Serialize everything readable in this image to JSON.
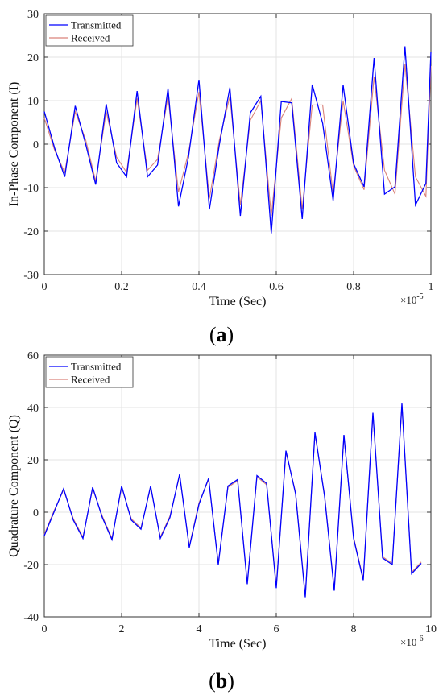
{
  "chart_data": [
    {
      "type": "line",
      "panel_label": "a",
      "xlabel": "Time (Sec)",
      "ylabel": "In-Phase Component (I)",
      "x_exponent_base": "×10",
      "x_exponent_power": "-5",
      "xlim": [
        0,
        1
      ],
      "ylim": [
        -30,
        30
      ],
      "xticks": [
        "0",
        "0.2",
        "0.4",
        "0.6",
        "0.8",
        "1"
      ],
      "yticks": [
        "-30",
        "-20",
        "-10",
        "0",
        "10",
        "20",
        "30"
      ],
      "xtick_values": [
        0,
        0.2,
        0.4,
        0.6,
        0.8,
        1
      ],
      "ytick_values": [
        -30,
        -20,
        -10,
        0,
        10,
        20,
        30
      ],
      "grid": true,
      "legend_position": "top-left",
      "series": [
        {
          "name": "Transmitted",
          "color": "#0000ff",
          "x": [
            0,
            0.027,
            0.053,
            0.08,
            0.107,
            0.133,
            0.16,
            0.187,
            0.213,
            0.24,
            0.267,
            0.293,
            0.32,
            0.347,
            0.373,
            0.4,
            0.427,
            0.453,
            0.48,
            0.507,
            0.533,
            0.56,
            0.587,
            0.613,
            0.64,
            0.667,
            0.693,
            0.72,
            0.747,
            0.773,
            0.8,
            0.827,
            0.853,
            0.88,
            0.907,
            0.933,
            0.96,
            0.987,
            1.0
          ],
          "values": [
            7.5,
            -1,
            -7.5,
            8.8,
            0,
            -9.3,
            9.2,
            -4.3,
            -7.5,
            12.2,
            -7.5,
            -4.8,
            12.8,
            -14.3,
            -3,
            14.8,
            -15,
            0,
            13,
            -16.5,
            7.2,
            11,
            -20.5,
            9.8,
            9.5,
            -17.2,
            13.7,
            4.8,
            -13,
            13.6,
            -4.5,
            -9.8,
            19.8,
            -11.5,
            -9.8,
            22.5,
            -14,
            -9,
            21.3
          ]
        },
        {
          "name": "Received",
          "color": "#d9827a",
          "x": [
            0,
            0.027,
            0.053,
            0.08,
            0.107,
            0.133,
            0.16,
            0.187,
            0.213,
            0.24,
            0.267,
            0.293,
            0.32,
            0.347,
            0.373,
            0.4,
            0.427,
            0.453,
            0.48,
            0.507,
            0.533,
            0.56,
            0.587,
            0.613,
            0.64,
            0.667,
            0.693,
            0.72,
            0.747,
            0.773,
            0.8,
            0.827,
            0.853,
            0.88,
            0.907,
            0.933,
            0.96,
            0.987,
            1.0
          ],
          "values": [
            6,
            -1.5,
            -6.5,
            7.5,
            1,
            -8.5,
            7.5,
            -3,
            -6.5,
            10.5,
            -6,
            -3.5,
            11,
            -11,
            -2,
            12,
            -12.5,
            1,
            11,
            -14,
            5.5,
            10,
            -16.5,
            6,
            10.5,
            -15,
            9,
            9,
            -11.5,
            10,
            -5,
            -10.5,
            15.5,
            -6,
            -11.5,
            18.5,
            -7.5,
            -12,
            18
          ]
        }
      ]
    },
    {
      "type": "line",
      "panel_label": "b",
      "xlabel": "Time (Sec)",
      "ylabel": "Quadrature Component (Q)",
      "x_exponent_base": "×10",
      "x_exponent_power": "-6",
      "xlim": [
        0,
        10
      ],
      "ylim": [
        -40,
        60
      ],
      "xticks": [
        "0",
        "2",
        "4",
        "6",
        "8",
        "10"
      ],
      "yticks": [
        "-40",
        "-20",
        "0",
        "20",
        "40",
        "60"
      ],
      "xtick_values": [
        0,
        2,
        4,
        6,
        8,
        10
      ],
      "ytick_values": [
        -40,
        -20,
        0,
        20,
        40,
        60
      ],
      "grid": true,
      "legend_position": "top-left",
      "series": [
        {
          "name": "Transmitted",
          "color": "#0000ff",
          "x": [
            0,
            0.25,
            0.5,
            0.75,
            1.0,
            1.25,
            1.5,
            1.75,
            2.0,
            2.25,
            2.5,
            2.75,
            3.0,
            3.25,
            3.5,
            3.75,
            4.0,
            4.25,
            4.5,
            4.75,
            5.0,
            5.25,
            5.5,
            5.75,
            6.0,
            6.25,
            6.5,
            6.75,
            7.0,
            7.25,
            7.5,
            7.75,
            8.0,
            8.25,
            8.5,
            8.75,
            9.0,
            9.25,
            9.5,
            9.75,
            10.0
          ],
          "values": [
            -9,
            0,
            9,
            -3,
            -10,
            9.5,
            -2,
            -10.5,
            10,
            -3,
            -6.5,
            10,
            -10,
            -2,
            14.5,
            -13.5,
            3,
            13,
            -20,
            10,
            12.5,
            -27.5,
            14,
            11,
            -29,
            23.5,
            7,
            -32.5,
            30.5,
            6,
            -30,
            29.5,
            -10,
            -26,
            38,
            -17.5,
            -20,
            41.5,
            -23.5,
            -19.5,
            null
          ]
        },
        {
          "name": "Received",
          "color": "#d9827a",
          "x": [
            0,
            0.25,
            0.5,
            0.75,
            1.0,
            1.25,
            1.5,
            1.75,
            2.0,
            2.25,
            2.5,
            2.75,
            3.0,
            3.25,
            3.5,
            3.75,
            4.0,
            4.25,
            4.5,
            4.75,
            5.0,
            5.25,
            5.5,
            5.75,
            6.0,
            6.25,
            6.5,
            6.75,
            7.0,
            7.25,
            7.5,
            7.75,
            8.0,
            8.25,
            8.5,
            8.75,
            9.0,
            9.25,
            9.5,
            9.75,
            10.0
          ],
          "values": [
            -8.5,
            0.5,
            8.5,
            -2.5,
            -9.5,
            9,
            -1.5,
            -10,
            9.5,
            -2.5,
            -6,
            9.5,
            -9.5,
            -1.5,
            14,
            -13,
            3.5,
            12.5,
            -19.5,
            9.5,
            12,
            -27,
            13.5,
            10.5,
            -28.5,
            23,
            7.5,
            -32,
            30,
            6.5,
            -29.5,
            29,
            -9.5,
            -25.5,
            37.5,
            -17,
            -19.5,
            41,
            -23,
            -19,
            null
          ]
        }
      ]
    }
  ]
}
